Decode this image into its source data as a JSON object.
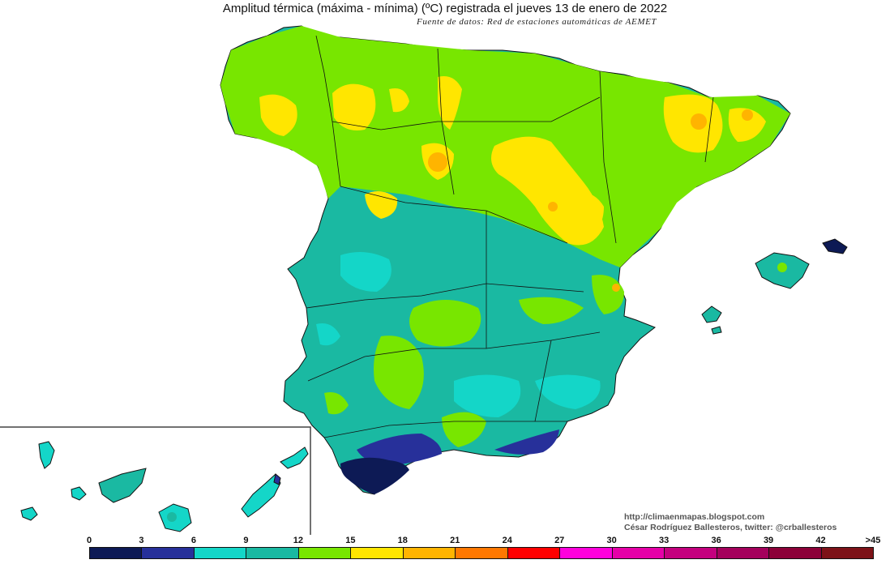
{
  "title": "Amplitud térmica (máxima - mínima) (ºC) registrada el jueves 13 de enero de 2022",
  "subtitle": "Fuente de datos: Red de estaciones automáticas de AEMET",
  "credits": {
    "website": "http://climaenmapas.blogspot.com",
    "author": "César Rodríguez Ballesteros, twitter: @crballesteros"
  },
  "legend": {
    "ticks": [
      "0",
      "3",
      "6",
      "9",
      "12",
      "15",
      "18",
      "21",
      "24",
      "27",
      "30",
      "33",
      "36",
      "39",
      "42",
      ">45"
    ],
    "colors": [
      "#0d1a55",
      "#27309a",
      "#14d6c8",
      "#1ab9a2",
      "#78e600",
      "#ffe600",
      "#ffb400",
      "#ff7800",
      "#ff0000",
      "#ff00dc",
      "#e600a8",
      "#c4007e",
      "#a4005c",
      "#8c0038",
      "#7d1218"
    ]
  },
  "map": {
    "regions": [
      "Península Ibérica",
      "Islas Baleares",
      "Islas Canarias"
    ],
    "colors": {
      "sea": "#ffffff",
      "borders": "#111111"
    }
  }
}
